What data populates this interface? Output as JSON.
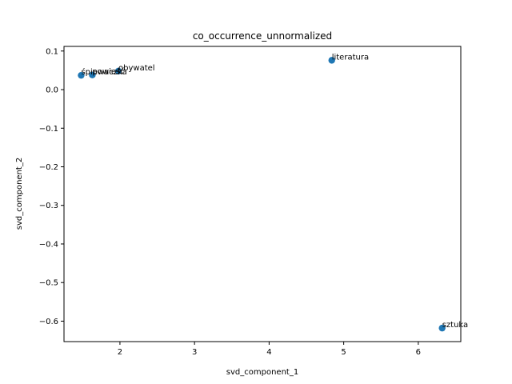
{
  "chart_data": {
    "type": "scatter",
    "title": "co_occurrence_unnormalized",
    "xlabel": "svd_component_1",
    "ylabel": "svd_component_2",
    "xlim": [
      1.25,
      6.57
    ],
    "ylim": [
      -0.653,
      0.112
    ],
    "xticks": [
      2,
      3,
      4,
      5,
      6
    ],
    "yticks": [
      0.1,
      0.0,
      -0.1,
      -0.2,
      -0.3,
      -0.4,
      -0.5,
      -0.6
    ],
    "xtick_labels": [
      "2",
      "3",
      "4",
      "5",
      "6"
    ],
    "ytick_labels": [
      "0.1",
      "0.0",
      "−0.1",
      "−0.2",
      "−0.3",
      "−0.4",
      "−0.5",
      "−0.6"
    ],
    "grid": false,
    "point_color": "#1f77b4",
    "points": [
      {
        "label": "śpiewaczka",
        "x": 1.48,
        "y": 0.037
      },
      {
        "label": "powieść",
        "x": 1.63,
        "y": 0.038
      },
      {
        "label": "obywatel",
        "x": 1.98,
        "y": 0.048
      },
      {
        "label": "literatura",
        "x": 4.84,
        "y": 0.076
      },
      {
        "label": "sztuka",
        "x": 6.32,
        "y": -0.618
      }
    ]
  }
}
